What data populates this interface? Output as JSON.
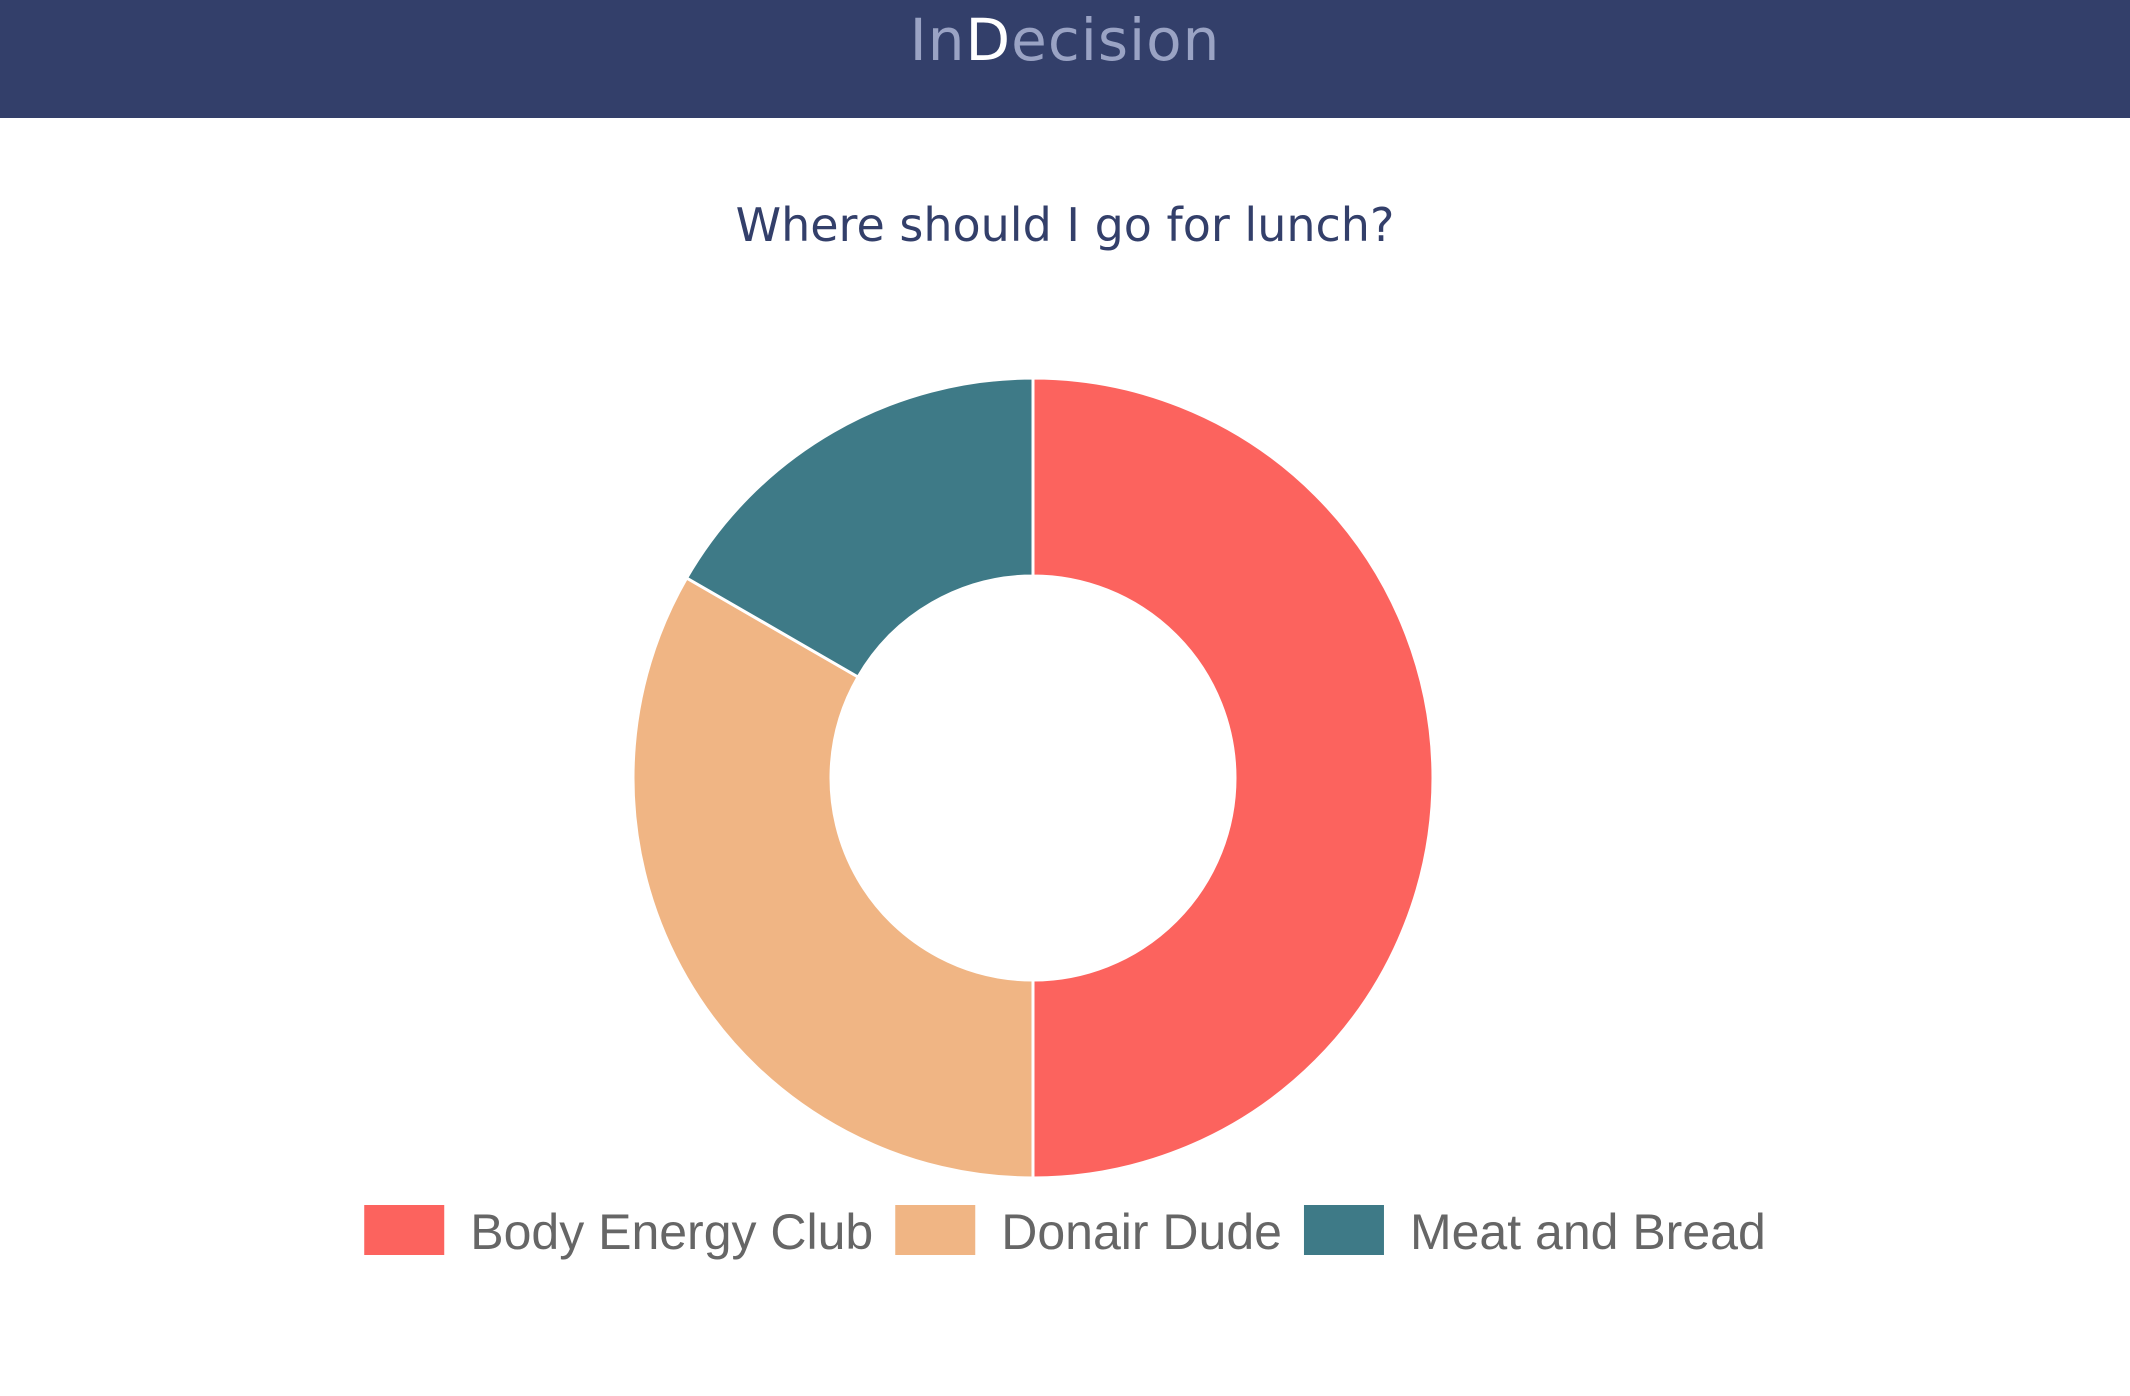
{
  "header": {
    "brand_prefix": "In",
    "brand_highlight": "D",
    "brand_suffix": "ecision"
  },
  "main": {
    "question": "Where should I go for lunch?"
  },
  "chart_data": {
    "type": "pie",
    "categories": [
      "Body Energy Club",
      "Donair Dude",
      "Meat and Bread"
    ],
    "values": [
      3,
      2,
      1
    ],
    "colors": [
      "#fc635e",
      "#f0b584",
      "#3e7a87"
    ],
    "legend_position": "bottom"
  },
  "colors": {
    "header_background": "#333f6a",
    "brand_text": "#9aa3c4",
    "brand_highlight": "#ffffff",
    "question_text": "#333f6a",
    "legend_text": "#666666"
  }
}
